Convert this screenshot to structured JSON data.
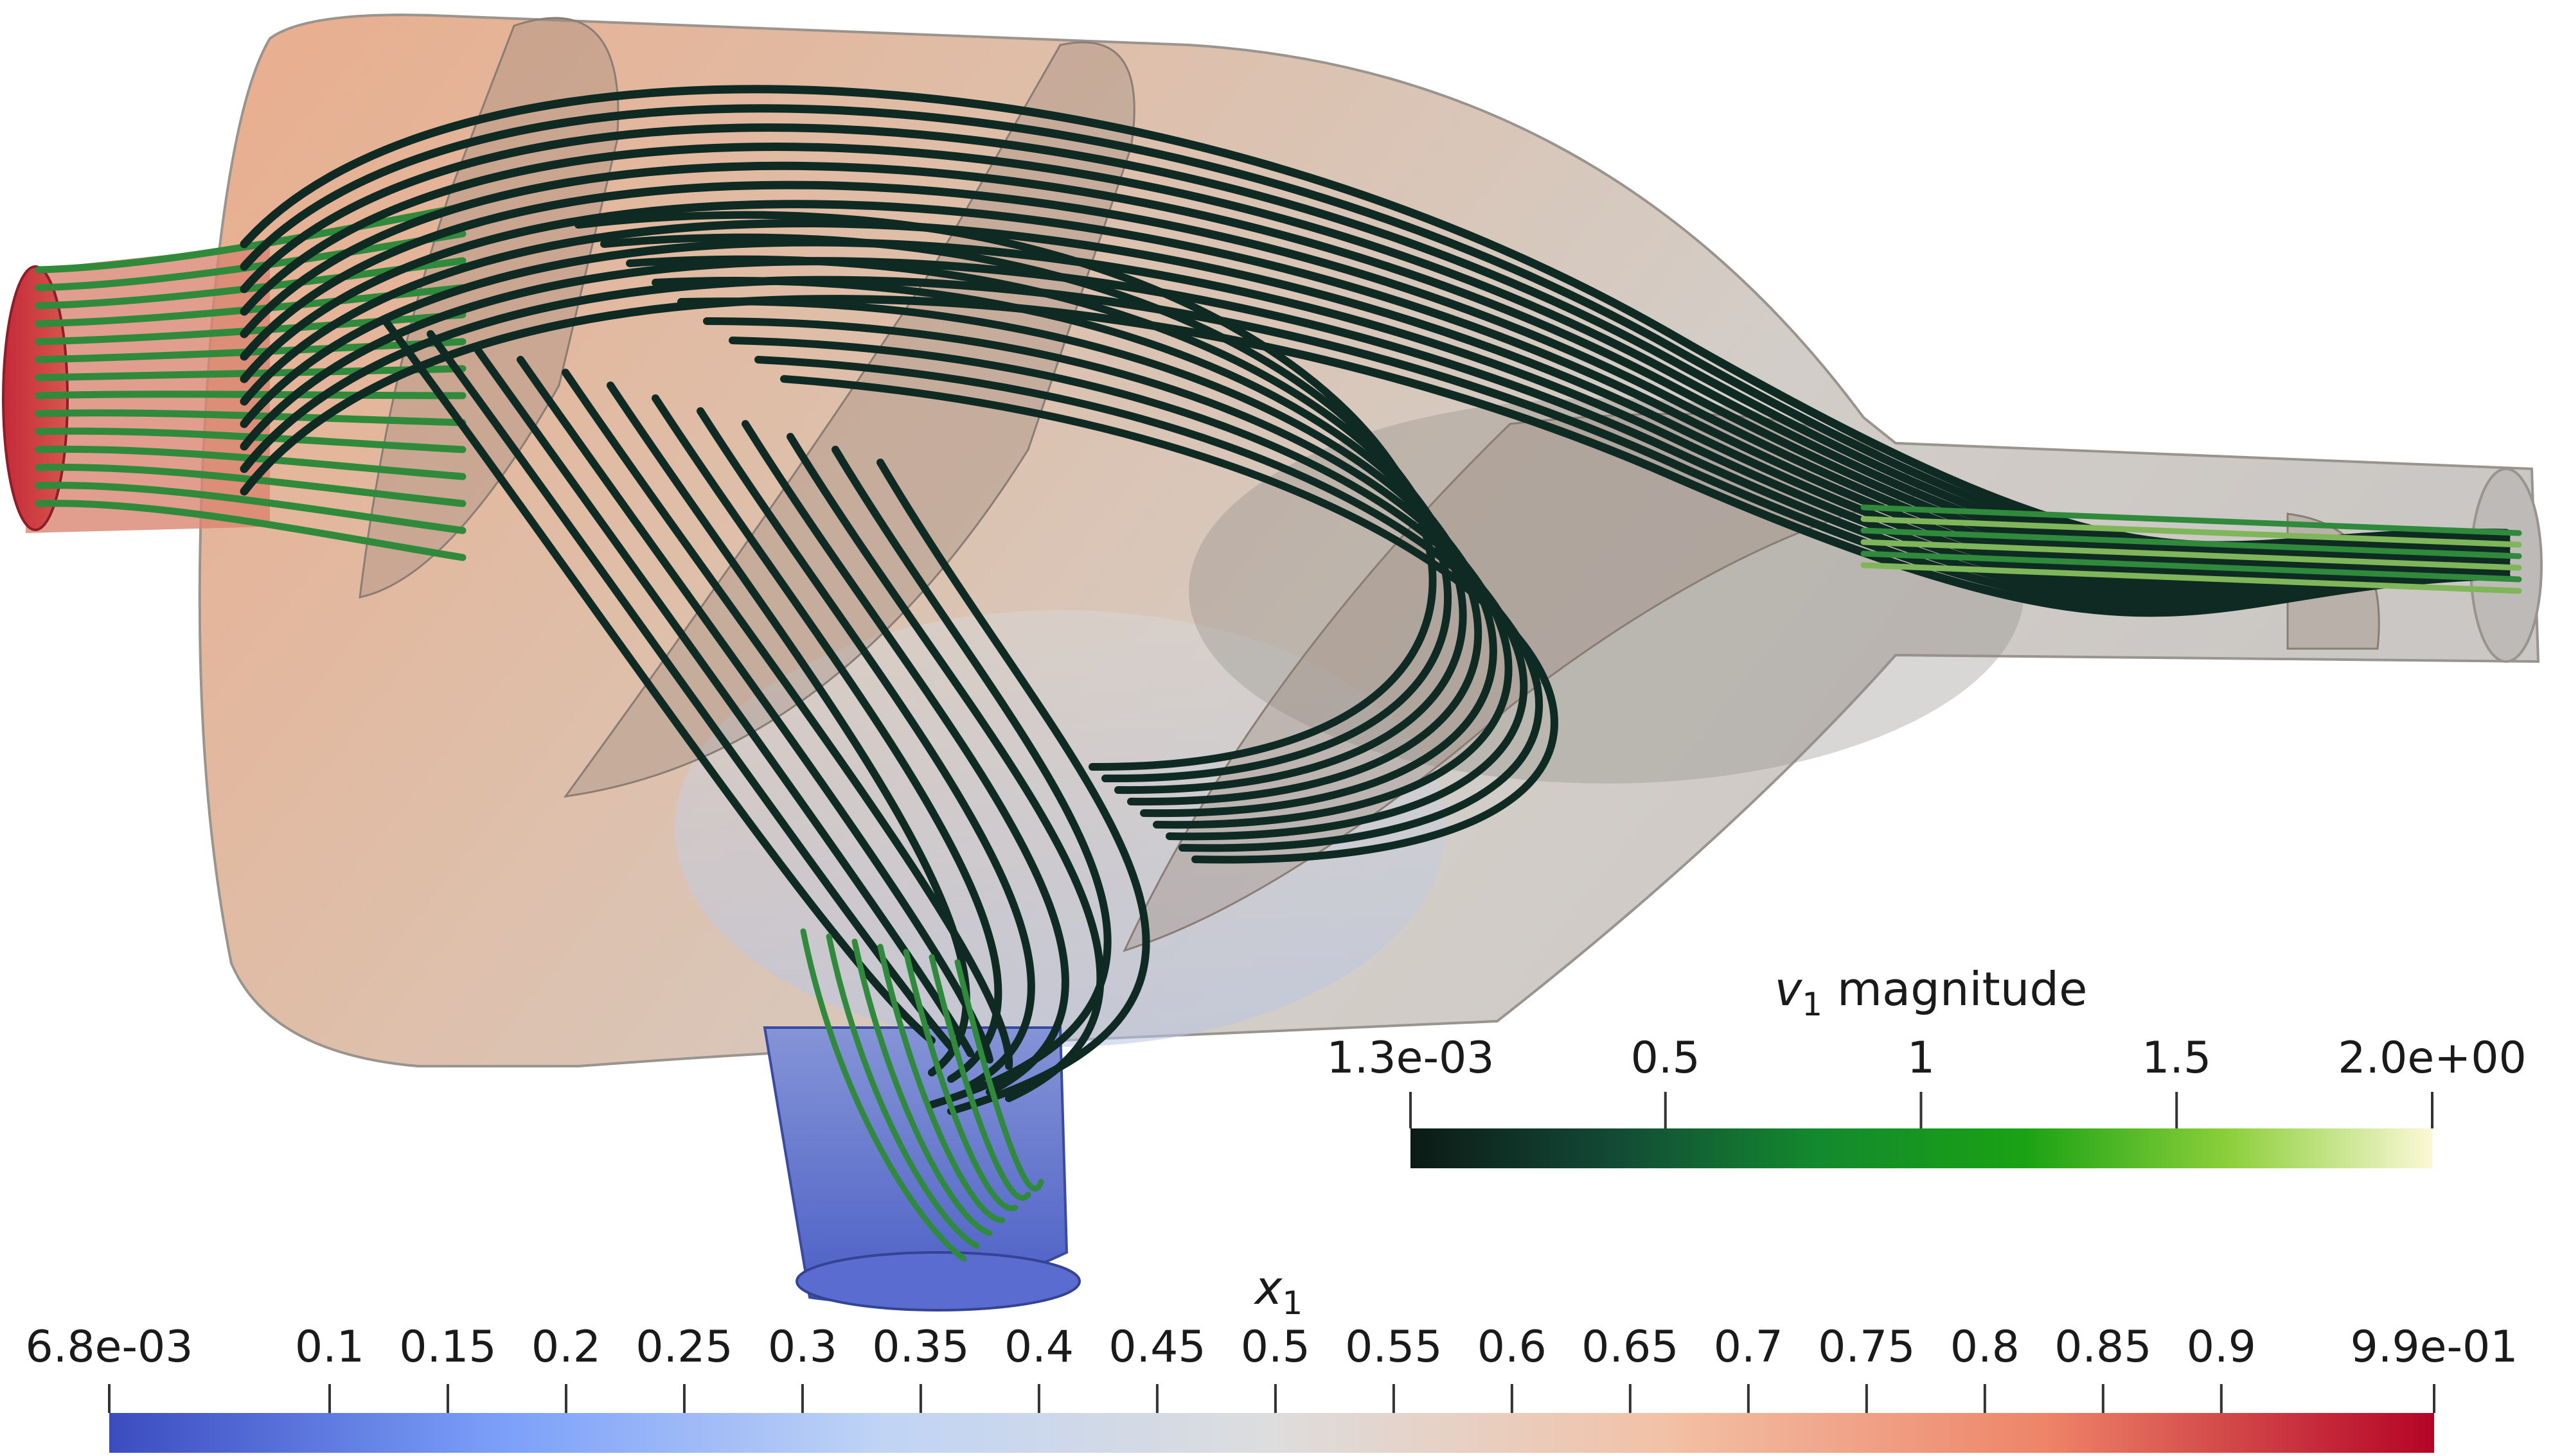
{
  "colorbar_v1": {
    "title_symbol": "v",
    "title_subscript": "1",
    "title_suffix": " magnitude",
    "min": 0.0013,
    "max": 2.0,
    "tick_labels": [
      {
        "label": "1.3e-03",
        "value": 0.0013
      },
      {
        "label": "0.5",
        "value": 0.5
      },
      {
        "label": "1",
        "value": 1.0
      },
      {
        "label": "1.5",
        "value": 1.5
      },
      {
        "label": "2.0e+00",
        "value": 2.0
      }
    ],
    "gradient_stops": [
      "#0c1a16",
      "#134a36",
      "#138a2e",
      "#1aa214",
      "#8ccf3a",
      "#fbf8d6"
    ]
  },
  "colorbar_x1": {
    "title_symbol": "x",
    "title_subscript": "1",
    "min": 0.0068,
    "max": 0.99,
    "tick_labels": [
      {
        "label": "6.8e-03",
        "value": 0.0068
      },
      {
        "label": "0.1",
        "value": 0.1
      },
      {
        "label": "0.15",
        "value": 0.15
      },
      {
        "label": "0.2",
        "value": 0.2
      },
      {
        "label": "0.25",
        "value": 0.25
      },
      {
        "label": "0.3",
        "value": 0.3
      },
      {
        "label": "0.35",
        "value": 0.35
      },
      {
        "label": "0.4",
        "value": 0.4
      },
      {
        "label": "0.45",
        "value": 0.45
      },
      {
        "label": "0.5",
        "value": 0.5
      },
      {
        "label": "0.55",
        "value": 0.55
      },
      {
        "label": "0.6",
        "value": 0.6
      },
      {
        "label": "0.65",
        "value": 0.65
      },
      {
        "label": "0.7",
        "value": 0.7
      },
      {
        "label": "0.75",
        "value": 0.75
      },
      {
        "label": "0.8",
        "value": 0.8
      },
      {
        "label": "0.85",
        "value": 0.85
      },
      {
        "label": "0.9",
        "value": 0.9
      },
      {
        "label": "9.9e-01",
        "value": 0.99
      }
    ],
    "gradient_stops": [
      "#3b4cc0",
      "#7b9ff9",
      "#c0d4f5",
      "#dddddd",
      "#f2c2a7",
      "#ee8468",
      "#b40426"
    ]
  },
  "colors": {
    "inlet": "#c8303c",
    "outlet_bottom": "#5466c8",
    "body_warm": "#e0a888",
    "body_neutral": "#cdc6c0",
    "streamline_dark": "#0f2a22",
    "streamline_green": "#2f8a3c"
  }
}
